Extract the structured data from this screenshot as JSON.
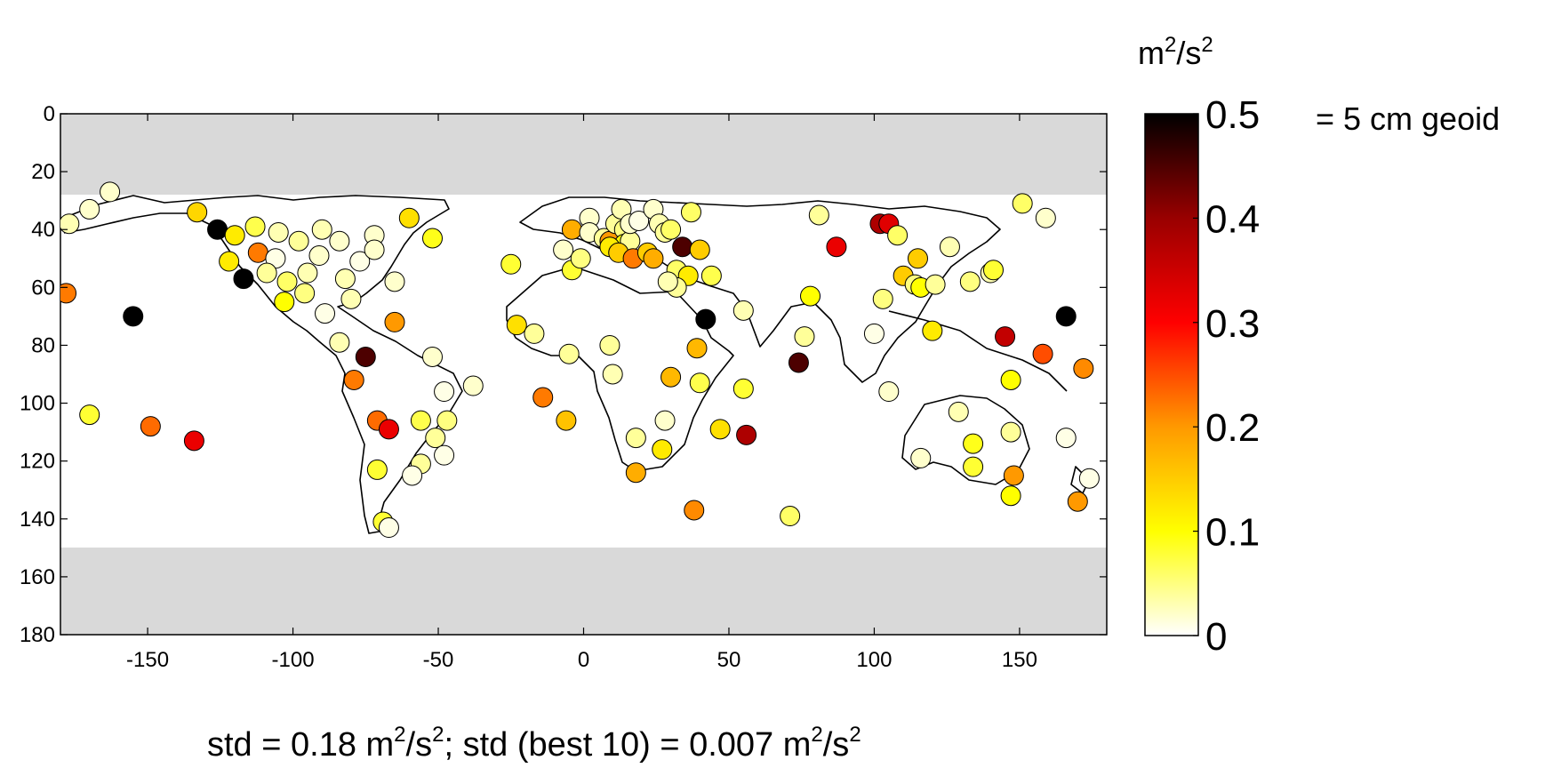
{
  "chart_data": {
    "type": "scatter",
    "title": "",
    "xlabel": "",
    "ylabel": "",
    "xlim": [
      -180,
      180
    ],
    "ylim": [
      0,
      180
    ],
    "y_inverted": true,
    "x_ticks": [
      -150,
      -100,
      -50,
      0,
      50,
      100,
      150
    ],
    "y_ticks": [
      0,
      20,
      40,
      60,
      80,
      100,
      120,
      140,
      160,
      180
    ],
    "masked_bands": [
      [
        0,
        28
      ],
      [
        150,
        180
      ]
    ],
    "mask_color": "#d9d9d9",
    "colorbar": {
      "unit_base": "m",
      "unit_sup1": "2",
      "unit_mid": "/s",
      "unit_sup2": "2",
      "min": 0,
      "max": 0.5,
      "ticks": [
        0,
        0.1,
        0.2,
        0.3,
        0.4,
        0.5
      ],
      "tick_labels": [
        "0",
        "0.1",
        "0.2",
        "0.3",
        "0.4",
        "0.5"
      ],
      "colormap": "hot_reversed",
      "annotation": "= 5 cm geoid"
    },
    "points": [
      {
        "x": -177,
        "y": 38,
        "v": 0.03
      },
      {
        "x": -170,
        "y": 33,
        "v": 0.02
      },
      {
        "x": -163,
        "y": 27,
        "v": 0.02
      },
      {
        "x": -178,
        "y": 62,
        "v": 0.22
      },
      {
        "x": -155,
        "y": 70,
        "v": 0.5
      },
      {
        "x": -170,
        "y": 104,
        "v": 0.08
      },
      {
        "x": -149,
        "y": 108,
        "v": 0.23
      },
      {
        "x": -134,
        "y": 113,
        "v": 0.32
      },
      {
        "x": -133,
        "y": 34,
        "v": 0.14
      },
      {
        "x": -126,
        "y": 40,
        "v": 0.5
      },
      {
        "x": -120,
        "y": 42,
        "v": 0.12
      },
      {
        "x": -113,
        "y": 39,
        "v": 0.07
      },
      {
        "x": -105,
        "y": 41,
        "v": 0.03
      },
      {
        "x": -98,
        "y": 44,
        "v": 0.04
      },
      {
        "x": -90,
        "y": 40,
        "v": 0.03
      },
      {
        "x": -84,
        "y": 44,
        "v": 0.02
      },
      {
        "x": -72,
        "y": 42,
        "v": 0.02
      },
      {
        "x": -60,
        "y": 36,
        "v": 0.13
      },
      {
        "x": -52,
        "y": 43,
        "v": 0.09
      },
      {
        "x": -122,
        "y": 51,
        "v": 0.12
      },
      {
        "x": -112,
        "y": 48,
        "v": 0.22
      },
      {
        "x": -117,
        "y": 57,
        "v": 0.5
      },
      {
        "x": -106,
        "y": 50,
        "v": 0.01
      },
      {
        "x": -109,
        "y": 55,
        "v": 0.04
      },
      {
        "x": -102,
        "y": 58,
        "v": 0.06
      },
      {
        "x": -95,
        "y": 55,
        "v": 0.03
      },
      {
        "x": -91,
        "y": 49,
        "v": 0.02
      },
      {
        "x": -82,
        "y": 57,
        "v": 0.03
      },
      {
        "x": -77,
        "y": 51,
        "v": 0.01
      },
      {
        "x": -72,
        "y": 47,
        "v": 0.02
      },
      {
        "x": -65,
        "y": 58,
        "v": 0.02
      },
      {
        "x": -96,
        "y": 62,
        "v": 0.05
      },
      {
        "x": -103,
        "y": 65,
        "v": 0.1
      },
      {
        "x": -89,
        "y": 69,
        "v": 0.01
      },
      {
        "x": -80,
        "y": 64,
        "v": 0.03
      },
      {
        "x": -84,
        "y": 79,
        "v": 0.03
      },
      {
        "x": -75,
        "y": 84,
        "v": 0.45
      },
      {
        "x": -65,
        "y": 72,
        "v": 0.2
      },
      {
        "x": -52,
        "y": 84,
        "v": 0.02
      },
      {
        "x": -79,
        "y": 92,
        "v": 0.22
      },
      {
        "x": -48,
        "y": 96,
        "v": 0.01
      },
      {
        "x": -38,
        "y": 94,
        "v": 0.02
      },
      {
        "x": -71,
        "y": 106,
        "v": 0.23
      },
      {
        "x": -67,
        "y": 109,
        "v": 0.32
      },
      {
        "x": -56,
        "y": 106,
        "v": 0.07
      },
      {
        "x": -47,
        "y": 106,
        "v": 0.05
      },
      {
        "x": -51,
        "y": 112,
        "v": 0.04
      },
      {
        "x": -48,
        "y": 118,
        "v": 0.01
      },
      {
        "x": -56,
        "y": 121,
        "v": 0.04
      },
      {
        "x": -59,
        "y": 125,
        "v": 0.01
      },
      {
        "x": -71,
        "y": 123,
        "v": 0.08
      },
      {
        "x": -69,
        "y": 141,
        "v": 0.08
      },
      {
        "x": -67,
        "y": 143,
        "v": 0.01
      },
      {
        "x": -25,
        "y": 52,
        "v": 0.08
      },
      {
        "x": -23,
        "y": 73,
        "v": 0.13
      },
      {
        "x": -17,
        "y": 76,
        "v": 0.04
      },
      {
        "x": -14,
        "y": 98,
        "v": 0.22
      },
      {
        "x": -6,
        "y": 106,
        "v": 0.16
      },
      {
        "x": -5,
        "y": 83,
        "v": 0.04
      },
      {
        "x": -7,
        "y": 47,
        "v": 0.02
      },
      {
        "x": -4,
        "y": 40,
        "v": 0.18
      },
      {
        "x": -4,
        "y": 54,
        "v": 0.08
      },
      {
        "x": -1,
        "y": 50,
        "v": 0.05
      },
      {
        "x": 2,
        "y": 36,
        "v": 0.02
      },
      {
        "x": 2,
        "y": 41,
        "v": 0.02
      },
      {
        "x": 7,
        "y": 43,
        "v": 0.04
      },
      {
        "x": 9,
        "y": 44,
        "v": 0.2
      },
      {
        "x": 11,
        "y": 38,
        "v": 0.04
      },
      {
        "x": 13,
        "y": 33,
        "v": 0.03
      },
      {
        "x": 14,
        "y": 40,
        "v": 0.05
      },
      {
        "x": 14,
        "y": 45,
        "v": 0.1
      },
      {
        "x": 16,
        "y": 44,
        "v": 0.04
      },
      {
        "x": 16,
        "y": 38,
        "v": 0.02
      },
      {
        "x": 19,
        "y": 37,
        "v": 0.01
      },
      {
        "x": 9,
        "y": 46,
        "v": 0.12
      },
      {
        "x": 12,
        "y": 48,
        "v": 0.15
      },
      {
        "x": 17,
        "y": 50,
        "v": 0.22
      },
      {
        "x": 22,
        "y": 48,
        "v": 0.15
      },
      {
        "x": 24,
        "y": 50,
        "v": 0.18
      },
      {
        "x": 24,
        "y": 33,
        "v": 0.02
      },
      {
        "x": 26,
        "y": 38,
        "v": 0.03
      },
      {
        "x": 28,
        "y": 41,
        "v": 0.04
      },
      {
        "x": 30,
        "y": 40,
        "v": 0.06
      },
      {
        "x": 34,
        "y": 46,
        "v": 0.45
      },
      {
        "x": 37,
        "y": 34,
        "v": 0.06
      },
      {
        "x": 40,
        "y": 47,
        "v": 0.15
      },
      {
        "x": 32,
        "y": 54,
        "v": 0.06
      },
      {
        "x": 36,
        "y": 56,
        "v": 0.12
      },
      {
        "x": 32,
        "y": 60,
        "v": 0.04
      },
      {
        "x": 29,
        "y": 58,
        "v": 0.03
      },
      {
        "x": 44,
        "y": 56,
        "v": 0.07
      },
      {
        "x": 42,
        "y": 71,
        "v": 0.5
      },
      {
        "x": 55,
        "y": 68,
        "v": 0.03
      },
      {
        "x": 9,
        "y": 80,
        "v": 0.04
      },
      {
        "x": 10,
        "y": 90,
        "v": 0.03
      },
      {
        "x": 39,
        "y": 81,
        "v": 0.17
      },
      {
        "x": 30,
        "y": 91,
        "v": 0.17
      },
      {
        "x": 40,
        "y": 93,
        "v": 0.07
      },
      {
        "x": 55,
        "y": 95,
        "v": 0.08
      },
      {
        "x": 47,
        "y": 109,
        "v": 0.13
      },
      {
        "x": 56,
        "y": 111,
        "v": 0.38
      },
      {
        "x": 18,
        "y": 112,
        "v": 0.04
      },
      {
        "x": 28,
        "y": 106,
        "v": 0.02
      },
      {
        "x": 27,
        "y": 116,
        "v": 0.12
      },
      {
        "x": 18,
        "y": 124,
        "v": 0.18
      },
      {
        "x": 38,
        "y": 137,
        "v": 0.21
      },
      {
        "x": 71,
        "y": 139,
        "v": 0.06
      },
      {
        "x": 81,
        "y": 35,
        "v": 0.04
      },
      {
        "x": 102,
        "y": 38,
        "v": 0.38
      },
      {
        "x": 105,
        "y": 38,
        "v": 0.33
      },
      {
        "x": 108,
        "y": 42,
        "v": 0.06
      },
      {
        "x": 87,
        "y": 46,
        "v": 0.32
      },
      {
        "x": 78,
        "y": 63,
        "v": 0.1
      },
      {
        "x": 103,
        "y": 64,
        "v": 0.05
      },
      {
        "x": 110,
        "y": 56,
        "v": 0.15
      },
      {
        "x": 114,
        "y": 59,
        "v": 0.05
      },
      {
        "x": 115,
        "y": 50,
        "v": 0.15
      },
      {
        "x": 116,
        "y": 60,
        "v": 0.1
      },
      {
        "x": 121,
        "y": 59,
        "v": 0.04
      },
      {
        "x": 126,
        "y": 46,
        "v": 0.03
      },
      {
        "x": 133,
        "y": 58,
        "v": 0.05
      },
      {
        "x": 140,
        "y": 55,
        "v": 0.03
      },
      {
        "x": 141,
        "y": 54,
        "v": 0.08
      },
      {
        "x": 151,
        "y": 31,
        "v": 0.06
      },
      {
        "x": 159,
        "y": 36,
        "v": 0.02
      },
      {
        "x": 76,
        "y": 77,
        "v": 0.04
      },
      {
        "x": 74,
        "y": 86,
        "v": 0.45
      },
      {
        "x": 100,
        "y": 76,
        "v": 0.01
      },
      {
        "x": 120,
        "y": 75,
        "v": 0.12
      },
      {
        "x": 105,
        "y": 96,
        "v": 0.02
      },
      {
        "x": 145,
        "y": 77,
        "v": 0.36
      },
      {
        "x": 158,
        "y": 83,
        "v": 0.25
      },
      {
        "x": 166,
        "y": 70,
        "v": 0.5
      },
      {
        "x": 172,
        "y": 88,
        "v": 0.21
      },
      {
        "x": 147,
        "y": 92,
        "v": 0.1
      },
      {
        "x": 129,
        "y": 103,
        "v": 0.03
      },
      {
        "x": 147,
        "y": 110,
        "v": 0.04
      },
      {
        "x": 134,
        "y": 114,
        "v": 0.09
      },
      {
        "x": 116,
        "y": 119,
        "v": 0.02
      },
      {
        "x": 134,
        "y": 122,
        "v": 0.08
      },
      {
        "x": 148,
        "y": 125,
        "v": 0.2
      },
      {
        "x": 147,
        "y": 132,
        "v": 0.1
      },
      {
        "x": 166,
        "y": 112,
        "v": 0.01
      },
      {
        "x": 174,
        "y": 126,
        "v": 0.01
      },
      {
        "x": 170,
        "y": 134,
        "v": 0.2
      }
    ]
  },
  "footer": {
    "std_prefix": "std = 0.18 m",
    "sup_a": "2",
    "mid_a": "/s",
    "sup_b": "2",
    "std_middle": "; std (best 10) = 0.007 m",
    "sup_c": "2",
    "mid_b": "/s",
    "sup_d": "2"
  }
}
